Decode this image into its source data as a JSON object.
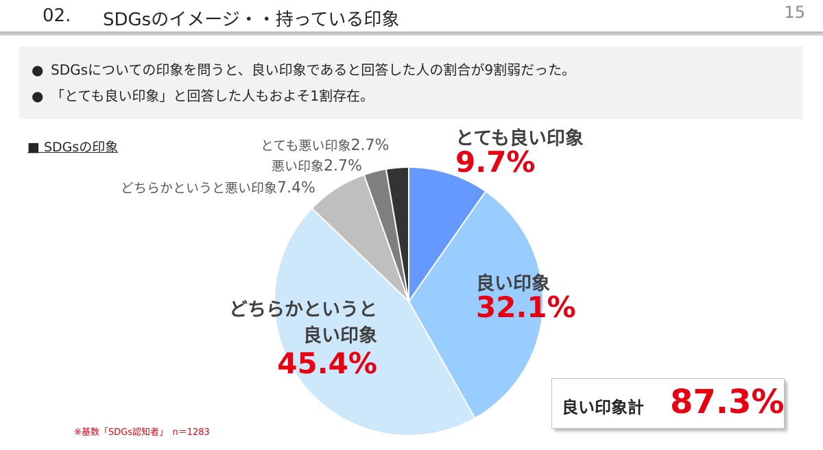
{
  "header": {
    "section_number": "02.",
    "title": "SDGsのイメージ・・持っている印象",
    "page_number": "15"
  },
  "summary": {
    "bullet": "●",
    "lines": [
      "SDGsについての印象を問うと、良い印象であると回答した人の割合が9割弱だった。",
      "「とても良い印象」と回答した人もおよそ1割存在。"
    ]
  },
  "chart_title": "■  SDGsの印象",
  "chart_data": {
    "type": "pie",
    "title": "■  SDGsの印象",
    "start": "12 o'clock, clockwise",
    "slices": [
      {
        "label": "とても良い印象",
        "value": 9.7,
        "value_label": "9.7%",
        "color": "#6699ff"
      },
      {
        "label": "良い印象",
        "value": 32.1,
        "value_label": "32.1%",
        "color": "#99ccff"
      },
      {
        "label": "どちらかというと良い印象",
        "label_lines": [
          "どちらかというと",
          "良い印象"
        ],
        "value": 45.4,
        "value_label": "45.4%",
        "color": "#cce8fa"
      },
      {
        "label": "どちらかというと悪い印象",
        "value": 7.4,
        "value_label": "7.4%",
        "color": "#bfbfbf"
      },
      {
        "label": "悪い印象",
        "value": 2.7,
        "value_label": "2.7%",
        "color": "#7f7f7f"
      },
      {
        "label": "とても悪い印象",
        "value": 2.7,
        "value_label": "2.7%",
        "color": "#333333"
      }
    ]
  },
  "total": {
    "label": "良い印象計",
    "value": "87.3%"
  },
  "footnote": "※基数「SDGs認知者」　n＝1283"
}
